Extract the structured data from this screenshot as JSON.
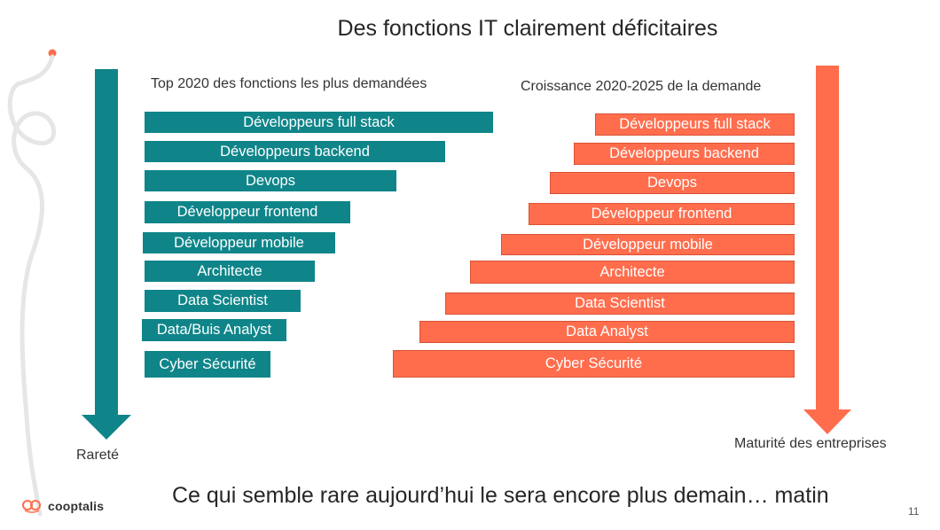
{
  "slide": {
    "title": "Des fonctions IT clairement déficitaires",
    "left_subtitle": "Top 2020 des fonctions les plus demandées",
    "right_subtitle": "Croissance 2020-2025 de la demande",
    "left_axis_label": "Rareté",
    "right_axis_label": "Maturité des entreprises",
    "footer_text": "Ce qui semble rare aujourd’hui le sera encore plus demain… matin",
    "page_number": "11",
    "logo_text": "cooptalis"
  },
  "colors": {
    "teal": "#0f8589",
    "orange": "#ff6d4d",
    "logo_accent": "#ff6d4d"
  },
  "left_bars": [
    {
      "label": "Développeurs full stack",
      "rank": 1
    },
    {
      "label": "Développeurs backend",
      "rank": 2
    },
    {
      "label": "Devops",
      "rank": 3
    },
    {
      "label": "Développeur frontend",
      "rank": 4
    },
    {
      "label": "Développeur mobile",
      "rank": 5
    },
    {
      "label": "Architecte",
      "rank": 6
    },
    {
      "label": "Data Scientist",
      "rank": 7
    },
    {
      "label": "Data/Buis Analyst",
      "rank": 8
    },
    {
      "label": "Cyber Sécurité",
      "rank": 9
    }
  ],
  "right_bars": [
    {
      "label": "Développeurs full stack",
      "rank": 1
    },
    {
      "label": "Développeurs backend",
      "rank": 2
    },
    {
      "label": "Devops",
      "rank": 3
    },
    {
      "label": "Développeur frontend",
      "rank": 4
    },
    {
      "label": "Développeur mobile",
      "rank": 5
    },
    {
      "label": "Architecte",
      "rank": 6
    },
    {
      "label": "Data Scientist",
      "rank": 7
    },
    {
      "label": "Data Analyst",
      "rank": 8
    },
    {
      "label": "Cyber Sécurité",
      "rank": 9
    }
  ]
}
